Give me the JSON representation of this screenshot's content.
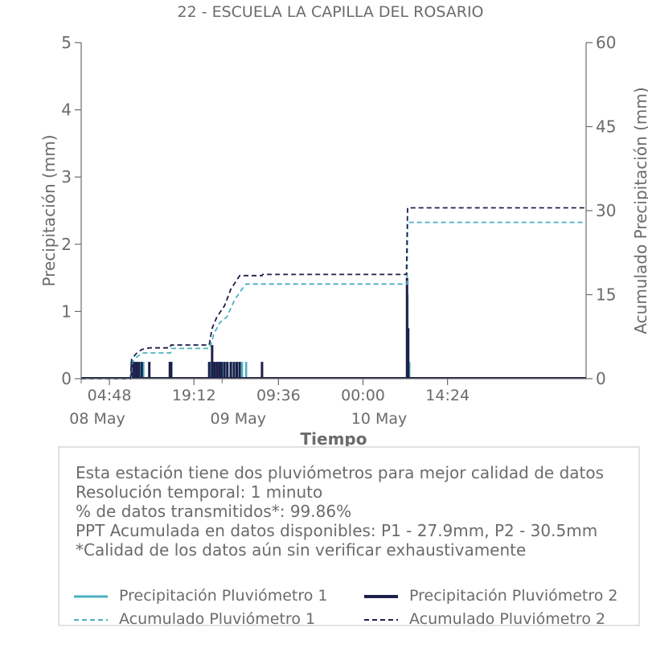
{
  "chart_data": {
    "type": "line",
    "title": "22 - ESCUELA LA CAPILLA DEL ROSARIO",
    "xlabel": "Tiempo",
    "ylabel": "Precipitación (mm)",
    "y2label": "Acumulado Precipitación (mm)",
    "ylim": [
      0,
      5
    ],
    "y2lim": [
      0,
      60
    ],
    "yticks": [
      "0",
      "1",
      "2",
      "3",
      "4",
      "5"
    ],
    "y2ticks": [
      "0",
      "15",
      "30",
      "45",
      "60"
    ],
    "xlim_hours": [
      0,
      86
    ],
    "xticks": [
      {
        "label": "04:48",
        "date": "08 May",
        "hour": 4.8
      },
      {
        "label": "19:12",
        "date": "09 May",
        "hour": 19.2
      },
      {
        "label": "09:36",
        "date": "10 May",
        "hour": 33.6
      },
      {
        "label": "00:00",
        "date": "",
        "hour": 48
      },
      {
        "label": "14:24",
        "date": "",
        "hour": 62.4
      }
    ],
    "series": [
      {
        "name": "Precipitación Pluviómetro 1",
        "color": "#4bb0c1",
        "style": "solid",
        "axis": "left",
        "points": [
          [
            8.7,
            0.25
          ],
          [
            9.2,
            0.25
          ],
          [
            9.6,
            0.25
          ],
          [
            10.1,
            0.25
          ],
          [
            10.6,
            0.25
          ],
          [
            15.2,
            0.25
          ],
          [
            15.4,
            0.25
          ],
          [
            21.9,
            0.25
          ],
          [
            22.2,
            0.25
          ],
          [
            22.6,
            0.25
          ],
          [
            23.1,
            0.25
          ],
          [
            23.6,
            0.25
          ],
          [
            24.2,
            0.25
          ],
          [
            24.8,
            0.25
          ],
          [
            25.4,
            0.25
          ],
          [
            26.1,
            0.25
          ],
          [
            26.9,
            0.25
          ],
          [
            27.4,
            0.25
          ],
          [
            28.1,
            0.25
          ],
          [
            55.6,
            1.25
          ],
          [
            55.9,
            0.25
          ]
        ]
      },
      {
        "name": "Precipitación Pluviómetro 2",
        "color": "#1e1f4a",
        "style": "solid",
        "axis": "left",
        "points": [
          [
            8.6,
            0.25
          ],
          [
            9.0,
            0.25
          ],
          [
            9.4,
            0.25
          ],
          [
            9.8,
            0.25
          ],
          [
            10.3,
            0.25
          ],
          [
            11.6,
            0.25
          ],
          [
            15.1,
            0.25
          ],
          [
            15.3,
            0.25
          ],
          [
            21.8,
            0.25
          ],
          [
            22.3,
            0.5
          ],
          [
            22.7,
            0.25
          ],
          [
            23.1,
            0.25
          ],
          [
            23.5,
            0.25
          ],
          [
            23.9,
            0.25
          ],
          [
            24.4,
            0.25
          ],
          [
            24.9,
            0.25
          ],
          [
            25.5,
            0.25
          ],
          [
            26.0,
            0.25
          ],
          [
            26.5,
            0.25
          ],
          [
            27.0,
            0.25
          ],
          [
            30.8,
            0.25
          ],
          [
            55.5,
            1.5
          ],
          [
            55.7,
            0.75
          ]
        ]
      },
      {
        "name": "Acumulado Pluviómetro 1",
        "color": "#4bb0c1",
        "style": "dashed",
        "axis": "right",
        "points": [
          [
            0,
            0
          ],
          [
            8.5,
            0
          ],
          [
            8.7,
            3
          ],
          [
            9.6,
            4
          ],
          [
            10.6,
            4.6
          ],
          [
            15.2,
            4.6
          ],
          [
            15.4,
            5.4
          ],
          [
            21.9,
            5.4
          ],
          [
            22.6,
            8
          ],
          [
            23.6,
            10
          ],
          [
            24.8,
            11
          ],
          [
            26.1,
            14
          ],
          [
            27.4,
            16
          ],
          [
            28.1,
            16.9
          ],
          [
            55.5,
            16.9
          ],
          [
            55.6,
            27.9
          ],
          [
            86,
            27.9
          ]
        ]
      },
      {
        "name": "Acumulado Pluviómetro 2",
        "color": "#1e1f4a",
        "style": "dashed",
        "axis": "right",
        "points": [
          [
            0,
            0
          ],
          [
            8.4,
            0
          ],
          [
            8.6,
            3.5
          ],
          [
            9.4,
            4.5
          ],
          [
            10.3,
            5.2
          ],
          [
            11.6,
            5.5
          ],
          [
            15.1,
            5.5
          ],
          [
            15.3,
            6.0
          ],
          [
            21.8,
            6.0
          ],
          [
            22.3,
            9
          ],
          [
            23.1,
            11
          ],
          [
            24.4,
            13
          ],
          [
            25.5,
            16
          ],
          [
            27.0,
            18.4
          ],
          [
            30.8,
            18.4
          ],
          [
            30.9,
            18.6
          ],
          [
            55.4,
            18.6
          ],
          [
            55.6,
            30.5
          ],
          [
            86,
            30.5
          ]
        ]
      }
    ]
  },
  "info": {
    "lines": [
      "Esta estación tiene dos pluviómetros para mejor calidad de datos",
      "Resolución temporal: 1 minuto",
      "% de datos transmitidos*: 99.86%",
      "PPT Acumulada en datos disponibles: P1 - 27.9mm, P2 - 30.5mm",
      "*Calidad de los datos aún sin verificar exhaustivamente"
    ]
  },
  "legend": {
    "items": [
      {
        "label": "Precipitación Pluviómetro 1",
        "color": "#4bb0c1",
        "style": "solid"
      },
      {
        "label": "Precipitación Pluviómetro 2",
        "color": "#1e1f4a",
        "style": "solid"
      },
      {
        "label": "Acumulado Pluviómetro 1",
        "color": "#4bb0c1",
        "style": "dashed"
      },
      {
        "label": "Acumulado Pluviómetro 2",
        "color": "#1e1f4a",
        "style": "dashed"
      }
    ]
  }
}
